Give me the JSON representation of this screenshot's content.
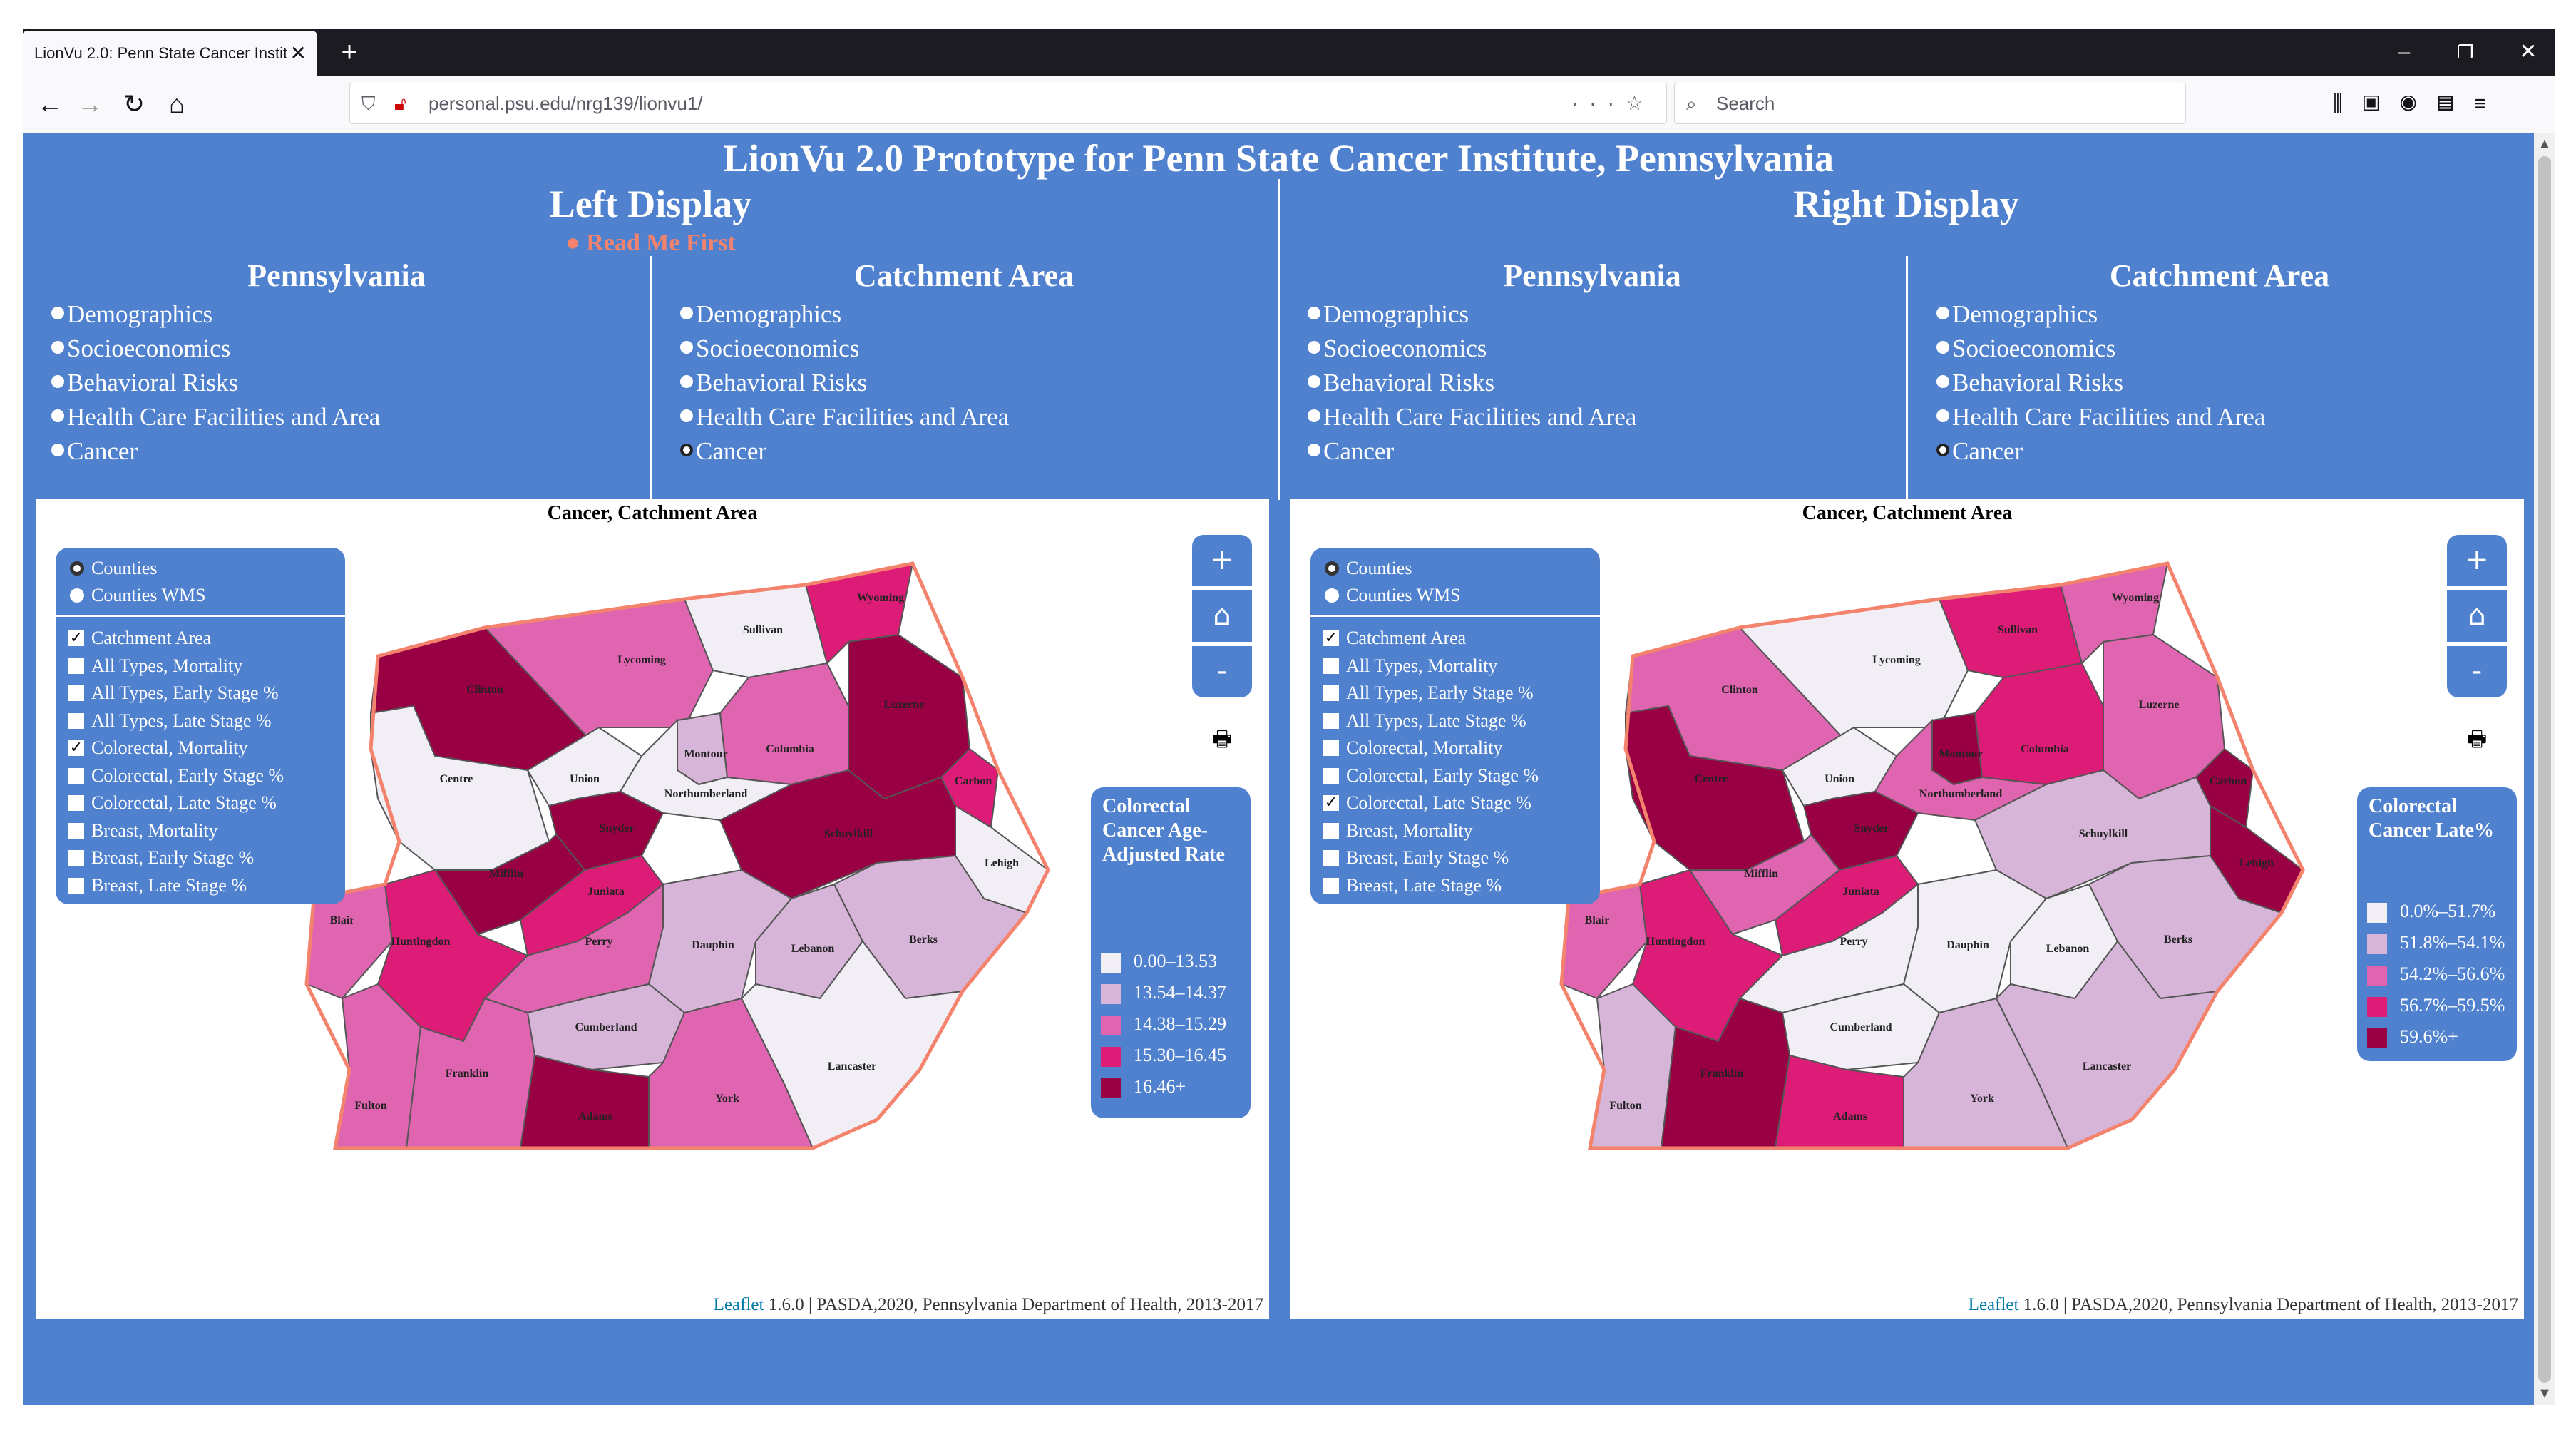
{
  "browser": {
    "tab_title": "LionVu 2.0: Penn State Cancer Instit",
    "tab_close": "✕",
    "new_tab": "+",
    "url": "personal.psu.edu/nrg139/lionvu1/",
    "search_placeholder": "Search",
    "window_minimize": "–",
    "window_restore": "❐",
    "window_close": "✕"
  },
  "page": {
    "main_title": "LionVu 2.0 Prototype for Penn State Cancer Institute, Pennsylvania",
    "left_display_title": "Left Display",
    "right_display_title": "Right Display",
    "read_me_link": "Read Me First"
  },
  "left": {
    "pa_title": "Pennsylvania",
    "ca_title": "Catchment Area",
    "pa_menu": [
      "Demographics",
      "Socioeconomics",
      "Behavioral Risks",
      "Health Care Facilities and Area",
      "Cancer"
    ],
    "ca_menu": [
      "Demographics",
      "Socioeconomics",
      "Behavioral Risks",
      "Health Care Facilities and Area",
      "Cancer"
    ],
    "ca_selected": "Cancer",
    "map_title": "Cancer, Catchment Area",
    "base_layers": [
      {
        "label": "Counties",
        "selected": true
      },
      {
        "label": "Counties WMS",
        "selected": false
      }
    ],
    "overlays": [
      {
        "label": "Catchment Area",
        "checked": true
      },
      {
        "label": "All Types, Mortality",
        "checked": false
      },
      {
        "label": "All Types, Early Stage %",
        "checked": false
      },
      {
        "label": "All Types, Late Stage %",
        "checked": false
      },
      {
        "label": "Colorectal, Mortality",
        "checked": true
      },
      {
        "label": "Colorectal, Early Stage %",
        "checked": false
      },
      {
        "label": "Colorectal, Late Stage %",
        "checked": false
      },
      {
        "label": "Breast, Mortality",
        "checked": false
      },
      {
        "label": "Breast, Early Stage %",
        "checked": false
      },
      {
        "label": "Breast, Late Stage %",
        "checked": false
      }
    ],
    "legend_title": "Colorectal Cancer Age-Adjusted Rate",
    "legend": [
      {
        "label": "0.00–13.53",
        "color": "#f1eef6"
      },
      {
        "label": "13.54–14.37",
        "color": "#d7b5d8"
      },
      {
        "label": "14.38–15.29",
        "color": "#df65b0"
      },
      {
        "label": "15.30–16.45",
        "color": "#dd1c77"
      },
      {
        "label": "16.46+",
        "color": "#980043"
      }
    ],
    "attribution_link": "Leaflet",
    "attribution_text": " 1.6.0 | PASDA,2020, Pennsylvania Department of Health, 2013-2017"
  },
  "right": {
    "pa_title": "Pennsylvania",
    "ca_title": "Catchment Area",
    "pa_menu": [
      "Demographics",
      "Socioeconomics",
      "Behavioral Risks",
      "Health Care Facilities and Area",
      "Cancer"
    ],
    "ca_menu": [
      "Demographics",
      "Socioeconomics",
      "Behavioral Risks",
      "Health Care Facilities and Area",
      "Cancer"
    ],
    "ca_selected": "Cancer",
    "map_title": "Cancer, Catchment Area",
    "base_layers": [
      {
        "label": "Counties",
        "selected": true
      },
      {
        "label": "Counties WMS",
        "selected": false
      }
    ],
    "overlays": [
      {
        "label": "Catchment Area",
        "checked": true
      },
      {
        "label": "All Types, Mortality",
        "checked": false
      },
      {
        "label": "All Types, Early Stage %",
        "checked": false
      },
      {
        "label": "All Types, Late Stage %",
        "checked": false
      },
      {
        "label": "Colorectal, Mortality",
        "checked": false
      },
      {
        "label": "Colorectal, Early Stage %",
        "checked": false
      },
      {
        "label": "Colorectal, Late Stage %",
        "checked": true
      },
      {
        "label": "Breast, Mortality",
        "checked": false
      },
      {
        "label": "Breast, Early Stage %",
        "checked": false
      },
      {
        "label": "Breast, Late Stage %",
        "checked": false
      }
    ],
    "legend_title": "Colorectal Cancer Late%",
    "legend": [
      {
        "label": "0.0%–51.7%",
        "color": "#f1eef6"
      },
      {
        "label": "51.8%–54.1%",
        "color": "#d7b5d8"
      },
      {
        "label": "54.2%–56.6%",
        "color": "#df65b0"
      },
      {
        "label": "56.7%–59.5%",
        "color": "#dd1c77"
      },
      {
        "label": "59.6%+",
        "color": "#980043"
      }
    ],
    "attribution_link": "Leaflet",
    "attribution_text": " 1.6.0 | PASDA,2020, Pennsylvania Department of Health, 2013-2017"
  },
  "map_controls": {
    "zoom_in": "+",
    "home": "⌂",
    "zoom_out": "-",
    "print": "🖶"
  },
  "counties": {
    "Clinton": "Clinton",
    "Lycoming": "Lycoming",
    "Sullivan": "Sullivan",
    "Wyoming": "Wyoming",
    "Luzerne": "Luzerne",
    "Carbon": "Carbon",
    "Lehigh": "Lehigh",
    "Centre": "Centre",
    "Union": "Union",
    "Montour": "Montour",
    "Columbia": "Columbia",
    "Northumberland": "Northumberland",
    "Snyder": "Snyder",
    "Schuylkill": "Schuylkill",
    "Mifflin": "Mifflin",
    "Juniata": "Juniata",
    "Blair": "Blair",
    "Huntingdon": "Huntingdon",
    "Perry": "Perry",
    "Dauphin": "Dauphin",
    "Lebanon": "Lebanon",
    "Berks": "Berks",
    "Cumberland": "Cumberland",
    "Lancaster": "Lancaster",
    "Fulton": "Fulton",
    "Franklin": "Franklin",
    "Adams": "Adams",
    "York": "York"
  },
  "left_fill": {
    "Clinton": "#980043",
    "Lycoming": "#df65b0",
    "Sullivan": "#f1eef6",
    "Wyoming": "#dd1c77",
    "Luzerne": "#980043",
    "Carbon": "#dd1c77",
    "Lehigh": "#f1eef6",
    "Centre": "#f1eef6",
    "Union": "#f1eef6",
    "Montour": "#d7b5d8",
    "Columbia": "#df65b0",
    "Northumberland": "#f1eef6",
    "Snyder": "#980043",
    "Schuylkill": "#980043",
    "Mifflin": "#980043",
    "Juniata": "#dd1c77",
    "Blair": "#df65b0",
    "Huntingdon": "#dd1c77",
    "Perry": "#df65b0",
    "Dauphin": "#d7b5d8",
    "Lebanon": "#d7b5d8",
    "Berks": "#d7b5d8",
    "Cumberland": "#d7b5d8",
    "Lancaster": "#f1eef6",
    "Fulton": "#df65b0",
    "Franklin": "#df65b0",
    "Adams": "#980043",
    "York": "#df65b0"
  },
  "right_fill": {
    "Clinton": "#df65b0",
    "Lycoming": "#f1eef6",
    "Sullivan": "#dd1c77",
    "Wyoming": "#df65b0",
    "Luzerne": "#df65b0",
    "Carbon": "#980043",
    "Lehigh": "#980043",
    "Centre": "#980043",
    "Union": "#f1eef6",
    "Montour": "#980043",
    "Columbia": "#dd1c77",
    "Northumberland": "#df65b0",
    "Snyder": "#980043",
    "Schuylkill": "#d7b5d8",
    "Mifflin": "#df65b0",
    "Juniata": "#dd1c77",
    "Blair": "#df65b0",
    "Huntingdon": "#dd1c77",
    "Perry": "#f1eef6",
    "Dauphin": "#f1eef6",
    "Lebanon": "#f1eef6",
    "Berks": "#d7b5d8",
    "Cumberland": "#f1eef6",
    "Lancaster": "#d7b5d8",
    "Fulton": "#d7b5d8",
    "Franklin": "#980043",
    "Adams": "#dd1c77",
    "York": "#d7b5d8"
  },
  "colors": {
    "page_bg": "#4f81cf",
    "catchment_outline": "#f4836e",
    "read_me": "#f4836e"
  }
}
